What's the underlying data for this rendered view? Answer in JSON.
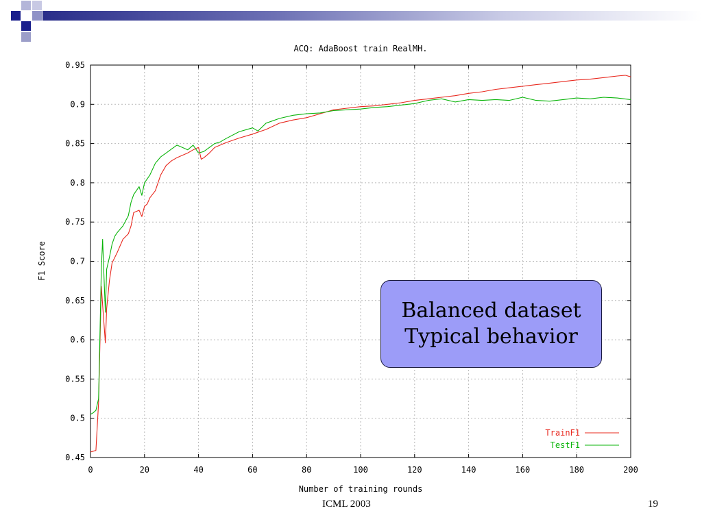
{
  "slide": {
    "callout_line1": "Balanced dataset",
    "callout_line2": "Typical behavior",
    "footer_left": "ICML 2003",
    "page_number": "19",
    "accent_dark": "#1a1f8c",
    "accent_light": "#9c9ec9",
    "callout_fill": "#9c9cf8"
  },
  "chart_data": {
    "type": "line",
    "title": "ACQ: AdaBoost train RealMH.",
    "xlabel": "Number of training rounds",
    "ylabel": "F1 Score",
    "xlim": [
      0,
      200
    ],
    "ylim": [
      0.45,
      0.95
    ],
    "xticks": [
      "0",
      "20",
      "40",
      "60",
      "80",
      "100",
      "120",
      "140",
      "160",
      "180",
      "200"
    ],
    "yticks": [
      "0.45",
      "0.5",
      "0.55",
      "0.6",
      "0.65",
      "0.7",
      "0.75",
      "0.8",
      "0.85",
      "0.9",
      "0.95"
    ],
    "grid": true,
    "legend_position": "bottom-right",
    "series": [
      {
        "name": "TrainF1",
        "color": "#e8281e",
        "x": [
          0,
          1,
          2,
          3,
          4,
          5,
          5.5,
          6,
          7,
          8,
          9,
          10,
          12,
          14,
          15,
          16,
          18,
          19,
          20,
          21,
          22,
          24,
          26,
          28,
          30,
          32,
          34,
          36,
          38,
          40,
          41,
          42,
          44,
          46,
          48,
          50,
          55,
          60,
          65,
          70,
          75,
          80,
          85,
          90,
          95,
          100,
          105,
          110,
          115,
          120,
          125,
          130,
          135,
          140,
          145,
          150,
          155,
          160,
          165,
          170,
          175,
          180,
          185,
          190,
          195,
          198,
          200
        ],
        "y": [
          0.457,
          0.458,
          0.459,
          0.52,
          0.668,
          0.62,
          0.596,
          0.64,
          0.675,
          0.698,
          0.705,
          0.712,
          0.728,
          0.735,
          0.745,
          0.762,
          0.765,
          0.757,
          0.77,
          0.773,
          0.781,
          0.79,
          0.81,
          0.822,
          0.828,
          0.832,
          0.835,
          0.838,
          0.842,
          0.845,
          0.83,
          0.832,
          0.838,
          0.845,
          0.848,
          0.851,
          0.857,
          0.862,
          0.868,
          0.876,
          0.88,
          0.883,
          0.888,
          0.893,
          0.895,
          0.897,
          0.898,
          0.9,
          0.902,
          0.905,
          0.907,
          0.909,
          0.911,
          0.914,
          0.916,
          0.919,
          0.921,
          0.923,
          0.925,
          0.927,
          0.929,
          0.931,
          0.932,
          0.934,
          0.936,
          0.937,
          0.935
        ]
      },
      {
        "name": "TestF1",
        "color": "#0ab40a",
        "x": [
          0,
          1,
          2,
          3,
          4,
          4.5,
          5,
          5.5,
          6,
          7,
          8,
          9,
          10,
          12,
          14,
          15,
          16,
          18,
          19,
          20,
          22,
          24,
          26,
          28,
          30,
          32,
          34,
          36,
          38,
          40,
          42,
          44,
          46,
          48,
          50,
          55,
          60,
          62,
          65,
          70,
          75,
          80,
          85,
          90,
          95,
          100,
          105,
          110,
          115,
          120,
          125,
          130,
          135,
          140,
          145,
          150,
          155,
          160,
          165,
          170,
          175,
          180,
          185,
          190,
          195,
          200
        ],
        "y": [
          0.505,
          0.507,
          0.51,
          0.525,
          0.69,
          0.728,
          0.68,
          0.635,
          0.69,
          0.705,
          0.722,
          0.732,
          0.737,
          0.745,
          0.758,
          0.775,
          0.785,
          0.795,
          0.784,
          0.8,
          0.81,
          0.825,
          0.833,
          0.838,
          0.843,
          0.848,
          0.845,
          0.842,
          0.848,
          0.838,
          0.84,
          0.845,
          0.85,
          0.852,
          0.856,
          0.865,
          0.87,
          0.866,
          0.876,
          0.882,
          0.886,
          0.888,
          0.889,
          0.892,
          0.893,
          0.894,
          0.896,
          0.897,
          0.899,
          0.901,
          0.905,
          0.907,
          0.903,
          0.906,
          0.905,
          0.906,
          0.905,
          0.909,
          0.905,
          0.904,
          0.906,
          0.908,
          0.907,
          0.909,
          0.908,
          0.906
        ]
      }
    ]
  }
}
